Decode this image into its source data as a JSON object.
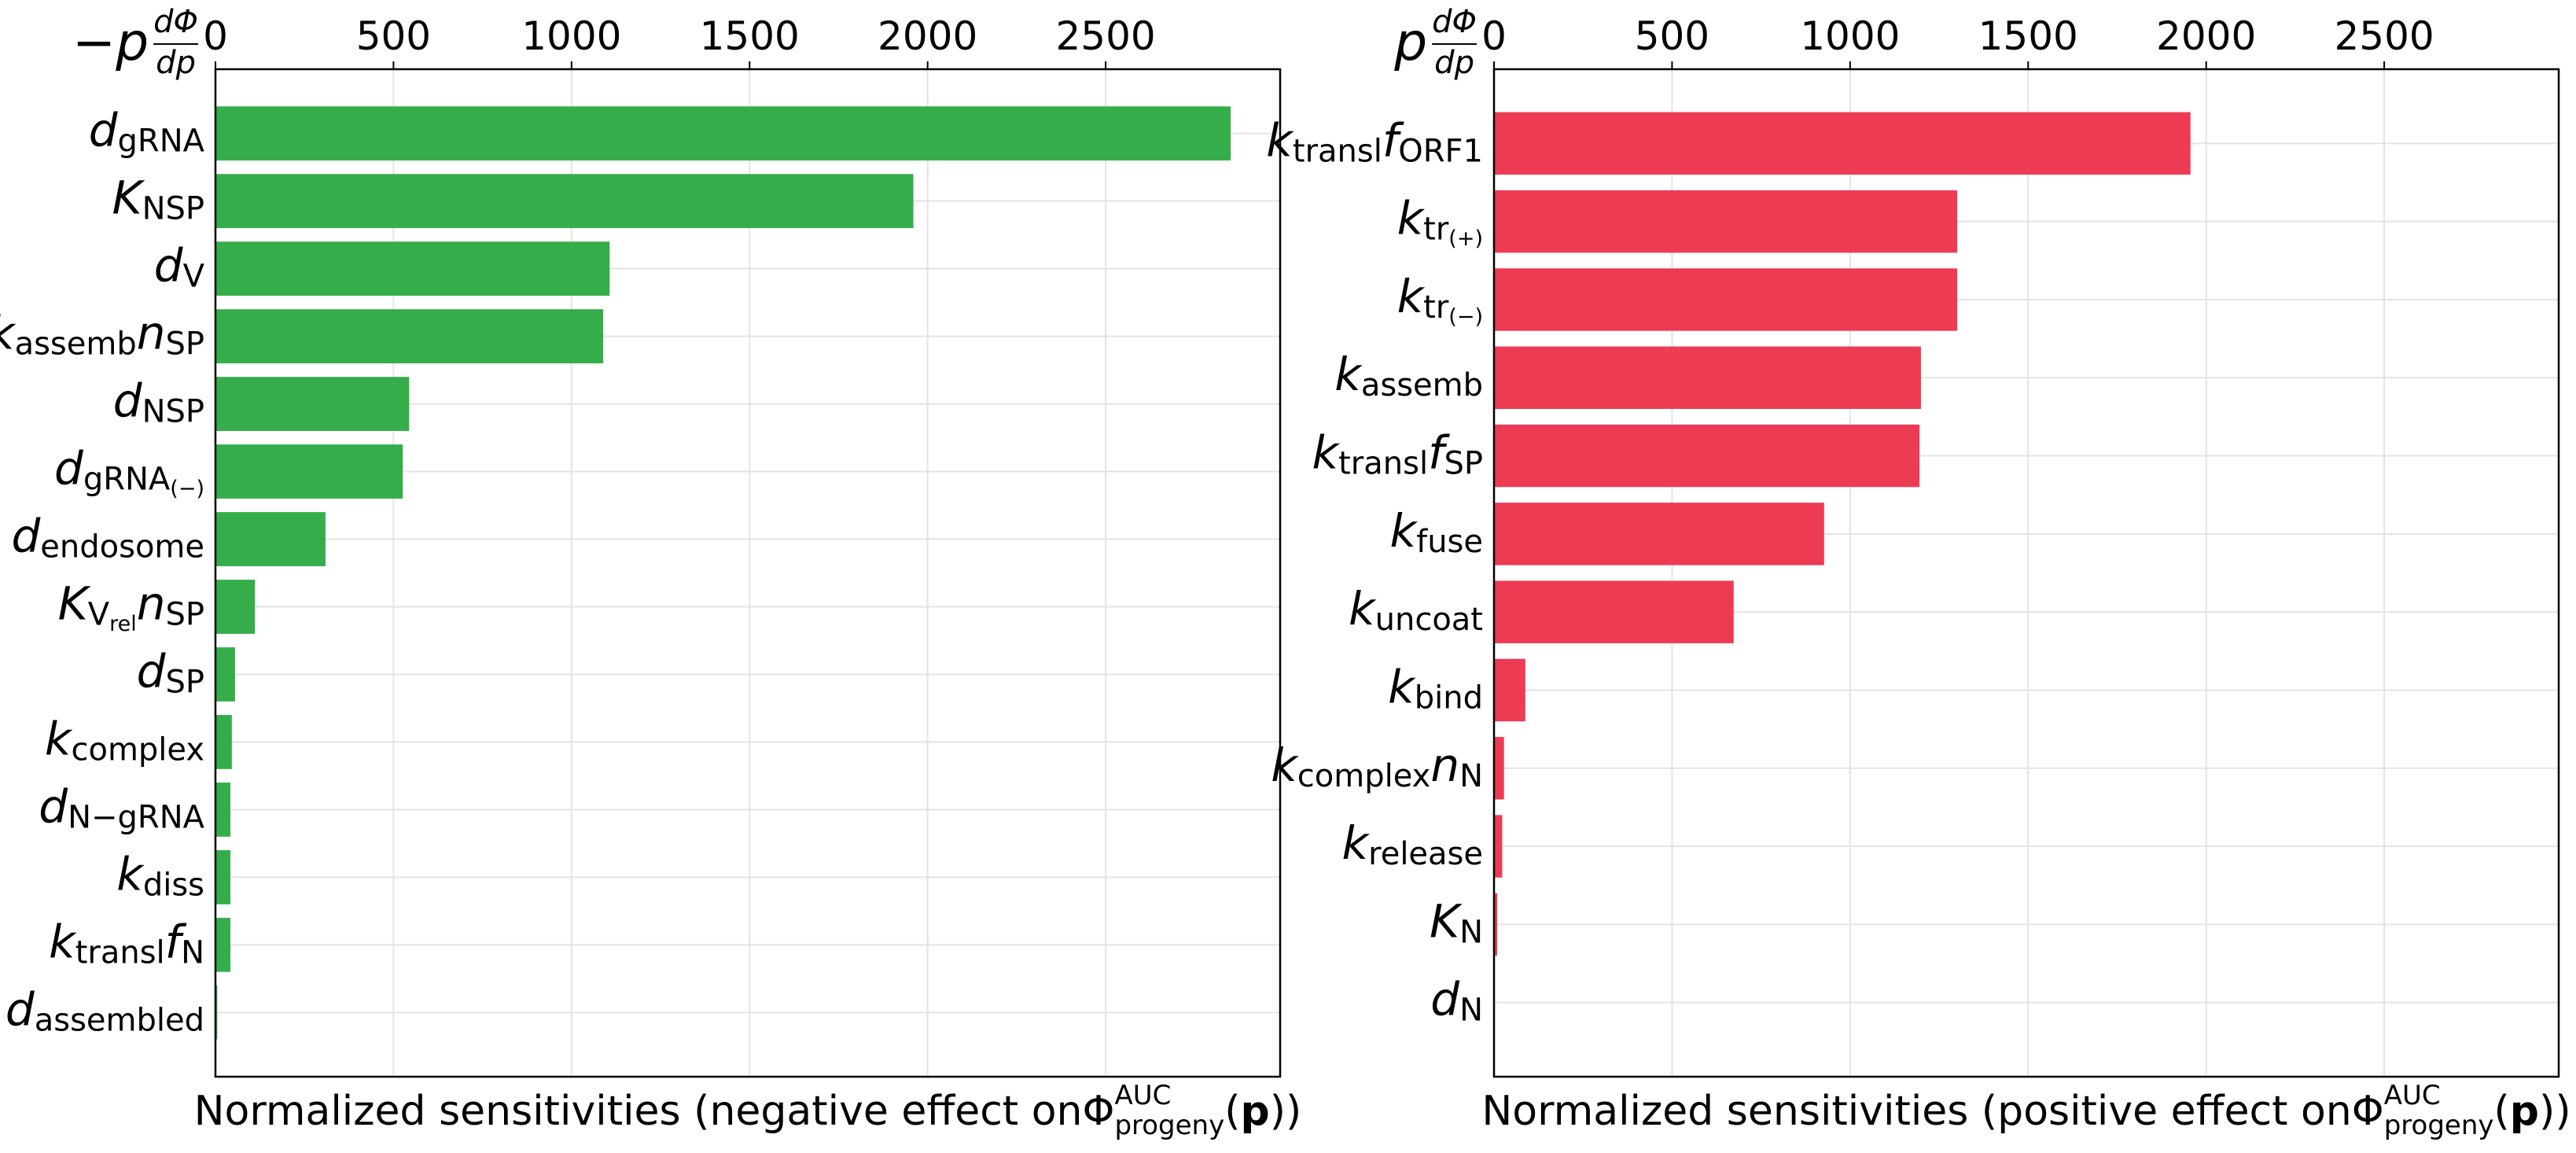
{
  "chart_data": [
    {
      "type": "bar",
      "orientation": "horizontal",
      "color": "#34ad4a",
      "grid": true,
      "corner_label": {
        "prefix": "−p",
        "numerator": "dΦ",
        "denominator": "dp"
      },
      "categories": [
        [
          [
            "d",
            "gRNA"
          ]
        ],
        [
          [
            "K",
            "NSP"
          ]
        ],
        [
          [
            "d",
            "V"
          ]
        ],
        [
          [
            "k",
            "assemb"
          ],
          [
            "n",
            "SP"
          ]
        ],
        [
          [
            "d",
            "NSP"
          ]
        ],
        [
          [
            "d",
            "gRNA",
            "(−)"
          ]
        ],
        [
          [
            "d",
            "endosome"
          ]
        ],
        [
          [
            "K",
            "V",
            "rel"
          ],
          [
            "n",
            "SP"
          ]
        ],
        [
          [
            "d",
            "SP"
          ]
        ],
        [
          [
            "k",
            "complex"
          ]
        ],
        [
          [
            "d",
            "N−gRNA"
          ]
        ],
        [
          [
            "k",
            "diss"
          ]
        ],
        [
          [
            "k",
            "transl"
          ],
          [
            "f",
            "N"
          ]
        ],
        [
          [
            "d",
            "assembled"
          ]
        ]
      ],
      "values": [
        2851,
        1960,
        1107,
        1089,
        544,
        526,
        309,
        111,
        55,
        46,
        42,
        42,
        42,
        5
      ],
      "xlim": [
        0,
        2990
      ],
      "xticks": [
        0,
        500,
        1000,
        1500,
        2000,
        2500
      ],
      "xlabel": [
        "Normalized sensitivities (negative effect on ",
        "Φ",
        "AUC",
        "progeny",
        "(",
        "p",
        "))"
      ]
    },
    {
      "type": "bar",
      "orientation": "horizontal",
      "color": "#ee3b54",
      "grid": true,
      "corner_label": {
        "prefix": "p",
        "numerator": "dΦ",
        "denominator": "dp"
      },
      "categories": [
        [
          [
            "k",
            "transl"
          ],
          [
            "f",
            "ORF1"
          ]
        ],
        [
          [
            "k",
            "tr",
            "(+)"
          ]
        ],
        [
          [
            "k",
            "tr",
            "(−)"
          ]
        ],
        [
          [
            "k",
            "assemb"
          ]
        ],
        [
          [
            "k",
            "transl"
          ],
          [
            "f",
            "SP"
          ]
        ],
        [
          [
            "k",
            "fuse"
          ]
        ],
        [
          [
            "k",
            "uncoat"
          ]
        ],
        [
          [
            "k",
            "bind"
          ]
        ],
        [
          [
            "k",
            "complex"
          ],
          [
            "n",
            "N"
          ]
        ],
        [
          [
            "k",
            "release"
          ]
        ],
        [
          [
            "K",
            "N"
          ]
        ],
        [
          [
            "d",
            "N"
          ]
        ]
      ],
      "values": [
        1956,
        1301,
        1301,
        1199,
        1195,
        927,
        673,
        88,
        28,
        23,
        9,
        2
      ],
      "xlim": [
        0,
        2990
      ],
      "xticks": [
        0,
        500,
        1000,
        1500,
        2000,
        2500
      ],
      "xlabel": [
        "Normalized sensitivities (positive effect on ",
        "Φ",
        "AUC",
        "progeny",
        "(",
        "p",
        "))"
      ]
    }
  ]
}
